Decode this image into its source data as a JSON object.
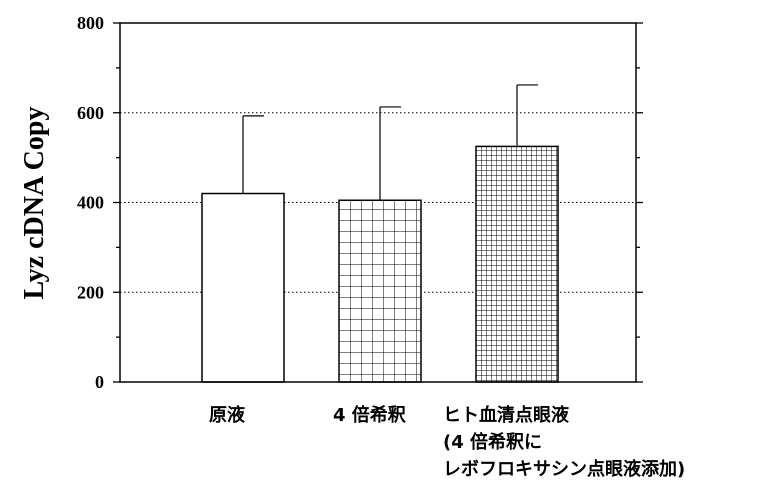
{
  "chart_data": {
    "type": "bar",
    "ylabel": "Lyz cDNA Copy",
    "ylim": [
      0,
      800
    ],
    "yticks": [
      0,
      200,
      400,
      600,
      800
    ],
    "grid": "horizontal dotted at 200, 400, 600",
    "categories": [
      [
        "原液"
      ],
      [
        "4 倍希釈"
      ],
      [
        "ヒト血清点眼液",
        "(4 倍希釈に",
        "レボフロキサシン点眼液添加)"
      ]
    ],
    "series": [
      {
        "values": [
          420,
          405,
          525
        ],
        "error_upper": [
          593,
          613,
          662
        ],
        "fills": [
          "plain",
          "grid-coarse",
          "grid-fine"
        ]
      }
    ],
    "colors": {
      "axis": "#000000",
      "bar_fill": "#ffffff",
      "grid": "#000000"
    }
  }
}
